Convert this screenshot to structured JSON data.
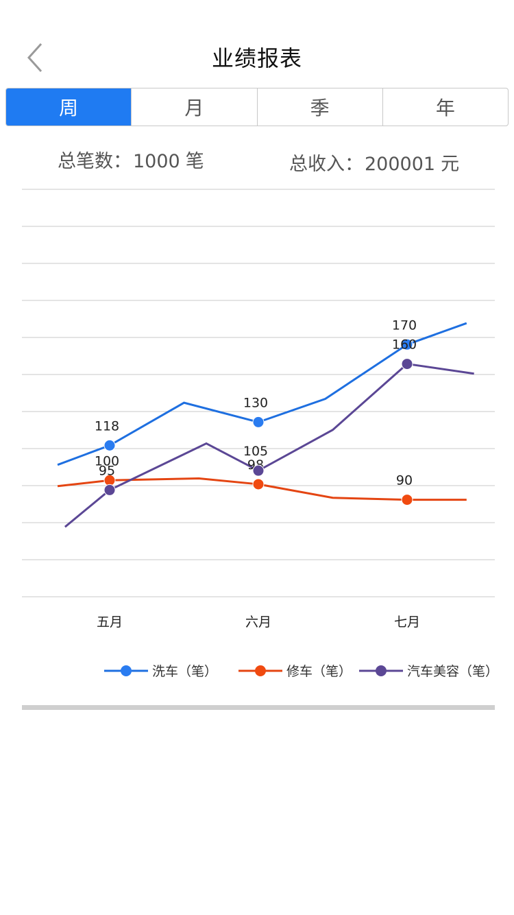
{
  "header": {
    "title": "业绩报表"
  },
  "tabs": [
    {
      "label": "周",
      "active": true
    },
    {
      "label": "月",
      "active": false
    },
    {
      "label": "季",
      "active": false
    },
    {
      "label": "年",
      "active": false
    }
  ],
  "summary": {
    "count_label": "总笔数：",
    "count_value": "1000",
    "count_unit": "笔",
    "income_label": "总收入：",
    "income_value": "200001",
    "income_unit": "元"
  },
  "chart_data": {
    "type": "line",
    "title": "",
    "xlabel": "",
    "ylabel": "",
    "ylim": [
      40,
      250
    ],
    "grid": true,
    "legend_position": "bottom-right",
    "categories": [
      "五月",
      "六月",
      "七月"
    ],
    "series": [
      {
        "name": "洗车（笔）",
        "color": "#1e6fe0",
        "marker_color": "#2a7cf0",
        "points": [
          {
            "x": -0.35,
            "y": 108
          },
          {
            "x": 0,
            "y": 118,
            "label": "118"
          },
          {
            "x": 0.5,
            "y": 140
          },
          {
            "x": 1,
            "y": 130,
            "label": "130"
          },
          {
            "x": 1.45,
            "y": 142
          },
          {
            "x": 2,
            "y": 170,
            "label": "170"
          },
          {
            "x": 2.4,
            "y": 181
          }
        ]
      },
      {
        "name": "修车（笔）",
        "color": "#e44512",
        "marker_color": "#f04a10",
        "points": [
          {
            "x": -0.35,
            "y": 97
          },
          {
            "x": 0,
            "y": 100,
            "label": "100"
          },
          {
            "x": 0.6,
            "y": 101
          },
          {
            "x": 1,
            "y": 98,
            "label": "98"
          },
          {
            "x": 1.5,
            "y": 91
          },
          {
            "x": 2,
            "y": 90,
            "label": "90"
          },
          {
            "x": 2.4,
            "y": 90
          }
        ]
      },
      {
        "name": "汽车美容（笔）",
        "color": "#5b4795",
        "marker_color": "#5b4795",
        "points": [
          {
            "x": -0.3,
            "y": 76
          },
          {
            "x": 0,
            "y": 95,
            "label": "95"
          },
          {
            "x": 0.65,
            "y": 119
          },
          {
            "x": 1,
            "y": 105,
            "label": "105"
          },
          {
            "x": 1.5,
            "y": 126
          },
          {
            "x": 2,
            "y": 160,
            "label": "160"
          },
          {
            "x": 2.45,
            "y": 155
          }
        ]
      }
    ]
  }
}
